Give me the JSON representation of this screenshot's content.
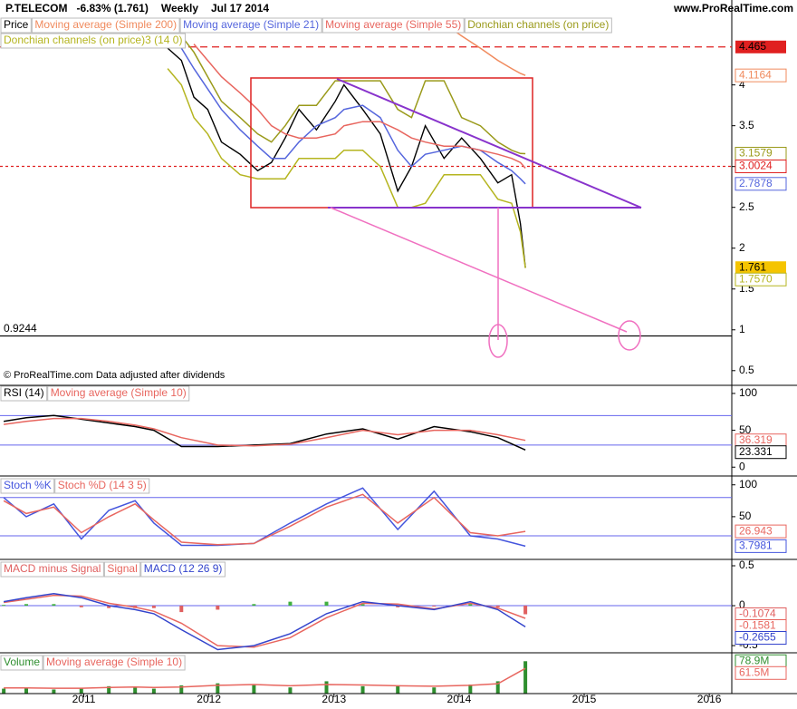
{
  "chart_data": [
    {
      "type": "line",
      "title": "P.TELECOM",
      "change": "-6.83% (1.761)",
      "period": "Weekly",
      "date": "Jul 17 2014",
      "source": "www.ProRealTime.com",
      "note": "© ProRealTime.com Data adjusted after dividends",
      "x": [
        2011.67,
        2011.78,
        2011.88,
        2011.99,
        2012.1,
        2012.25,
        2012.39,
        2012.5,
        2012.61,
        2012.72,
        2012.86,
        2013.01,
        2013.08,
        2013.23,
        2013.37,
        2013.51,
        2013.62,
        2013.73,
        2013.88,
        2014.02,
        2014.17,
        2014.31,
        2014.42,
        2014.49,
        2014.53
      ],
      "xlim": [
        2010.33,
        2016.18
      ],
      "ylim": [
        0.32,
        5.04
      ],
      "yticks": [
        4,
        3.5,
        3,
        2.5,
        2,
        1.5,
        1,
        0.5
      ],
      "series": [
        {
          "name": "Price",
          "color": "#000000",
          "label_color": "#f5c400",
          "values": [
            4.45,
            4.3,
            3.85,
            3.7,
            3.3,
            3.15,
            2.95,
            3.05,
            3.35,
            3.7,
            3.45,
            3.8,
            4.0,
            3.7,
            3.4,
            2.7,
            3.0,
            3.5,
            3.1,
            3.35,
            3.1,
            2.8,
            2.9,
            2.3,
            1.761
          ]
        },
        {
          "name": "Moving average (Simple 200)",
          "color": "#f08a5d",
          "values": [
            null,
            null,
            null,
            null,
            null,
            null,
            null,
            null,
            null,
            null,
            null,
            null,
            null,
            null,
            null,
            null,
            null,
            null,
            4.75,
            4.6,
            4.45,
            4.3,
            4.2,
            4.14,
            4.1164
          ]
        },
        {
          "name": "Moving average (Simple 21)",
          "color": "#5566dd",
          "values": [
            4.6,
            4.45,
            4.2,
            3.95,
            3.7,
            3.45,
            3.25,
            3.1,
            3.1,
            3.3,
            3.5,
            3.6,
            3.7,
            3.75,
            3.6,
            3.2,
            3.0,
            3.15,
            3.2,
            3.25,
            3.2,
            3.05,
            2.95,
            2.85,
            2.7878
          ]
        },
        {
          "name": "Moving average (Simple 55)",
          "color": "#e8665f",
          "show_last": false,
          "values": [
            null,
            null,
            4.5,
            4.3,
            4.1,
            3.9,
            3.7,
            3.5,
            3.4,
            3.35,
            3.35,
            3.4,
            3.5,
            3.55,
            3.55,
            3.45,
            3.35,
            3.3,
            3.25,
            3.25,
            3.2,
            3.15,
            3.1,
            3.05,
            2.98
          ]
        },
        {
          "name": "Donchian channels (on price)",
          "color": "#9a9a1a",
          "values": [
            4.8,
            4.6,
            4.4,
            4.1,
            3.8,
            3.6,
            3.4,
            3.3,
            3.5,
            3.75,
            3.75,
            4.05,
            4.05,
            4.05,
            4.05,
            3.7,
            3.6,
            4.05,
            4.05,
            3.6,
            3.5,
            3.3,
            3.2,
            3.16,
            3.1579
          ]
        },
        {
          "name": "Donchian channels (on price)3 (14 0)",
          "color": "#b5b520",
          "values": [
            4.2,
            4.0,
            3.6,
            3.4,
            3.1,
            2.9,
            2.85,
            2.85,
            2.85,
            3.1,
            3.1,
            3.1,
            3.2,
            3.2,
            3.0,
            2.5,
            2.5,
            2.55,
            2.9,
            2.9,
            2.9,
            2.6,
            2.55,
            2.2,
            1.757
          ],
          "value_labels": [
            null,
            null,
            null,
            null,
            null,
            null,
            null,
            null,
            null,
            null,
            null,
            null,
            null,
            null,
            null,
            null,
            null,
            null,
            null,
            null,
            null,
            null,
            null,
            null,
            "1.7570"
          ]
        }
      ],
      "hlines": [
        {
          "value": 4.465,
          "color": "#e02020",
          "dash": "8 5",
          "label_color": "#e02020"
        },
        {
          "value": 3.0024,
          "color": "#e02020",
          "dash": "3 3"
        },
        {
          "value": 0.9244,
          "color": "#000000",
          "label_side": "left"
        }
      ]
    },
    {
      "type": "line",
      "x": [
        2010.36,
        2010.54,
        2010.76,
        2010.98,
        2011.2,
        2011.41,
        2011.56,
        2011.78,
        2012.07,
        2012.36,
        2012.65,
        2012.94,
        2013.23,
        2013.51,
        2013.8,
        2014.09,
        2014.31,
        2014.53
      ],
      "xlim": [
        2010.33,
        2016.18
      ],
      "ylim": [
        -12,
        111
      ],
      "yticks": [
        100,
        50,
        0
      ],
      "levels": [
        70,
        30
      ],
      "level_color": "#6666ee",
      "series": [
        {
          "name": "RSI (14)",
          "color": "#000000",
          "values": [
            62,
            67,
            70,
            65,
            60,
            55,
            50,
            28,
            28,
            30,
            32,
            45,
            52,
            38,
            55,
            48,
            40,
            23.331
          ]
        },
        {
          "name": "Moving average (Simple 10)",
          "color": "#e8665f",
          "values": [
            58,
            62,
            66,
            66,
            62,
            57,
            52,
            40,
            30,
            29,
            31,
            40,
            50,
            44,
            50,
            50,
            44,
            36.319
          ]
        }
      ]
    },
    {
      "type": "line",
      "x": [
        2010.36,
        2010.54,
        2010.76,
        2010.98,
        2011.2,
        2011.41,
        2011.56,
        2011.78,
        2012.07,
        2012.36,
        2012.65,
        2012.94,
        2013.23,
        2013.51,
        2013.8,
        2014.09,
        2014.31,
        2014.53
      ],
      "xlim": [
        2010.33,
        2016.18
      ],
      "ylim": [
        -17,
        111
      ],
      "yticks": [
        100,
        50
      ],
      "levels": [
        80,
        20
      ],
      "level_color": "#6666ee",
      "series": [
        {
          "name": "Stoch %K",
          "color": "#4455dd",
          "values": [
            80,
            50,
            70,
            15,
            60,
            75,
            40,
            5,
            5,
            8,
            40,
            70,
            95,
            30,
            90,
            20,
            15,
            3.7981
          ]
        },
        {
          "name": "Stoch %D (14 3 5)",
          "color": "#e8665f",
          "values": [
            75,
            55,
            65,
            25,
            50,
            70,
            45,
            10,
            6,
            8,
            35,
            65,
            85,
            40,
            80,
            25,
            20,
            26.943
          ]
        }
      ]
    },
    {
      "type": "line",
      "x": [
        2010.36,
        2010.54,
        2010.76,
        2010.98,
        2011.2,
        2011.41,
        2011.56,
        2011.78,
        2012.07,
        2012.36,
        2012.65,
        2012.94,
        2013.23,
        2013.51,
        2013.8,
        2014.09,
        2014.31,
        2014.53
      ],
      "xlim": [
        2010.33,
        2016.18
      ],
      "ylim": [
        -0.59,
        0.557
      ],
      "yticks": [
        0.5,
        0,
        -0.5
      ],
      "levels": [
        0
      ],
      "level_color": "#6666ee",
      "series": [
        {
          "name": "MACD minus Signal",
          "type": "bar",
          "color": "#e06060",
          "color_up": "#40b040",
          "values": [
            0.01,
            0.02,
            0.02,
            -0.02,
            -0.03,
            -0.03,
            -0.03,
            -0.08,
            -0.05,
            0.02,
            0.05,
            0.05,
            0.02,
            -0.02,
            -0.01,
            0.02,
            -0.02,
            -0.1074
          ]
        },
        {
          "name": "Signal",
          "color": "#e8665f",
          "values": [
            0.04,
            0.08,
            0.13,
            0.12,
            0.03,
            -0.02,
            -0.07,
            -0.22,
            -0.5,
            -0.52,
            -0.4,
            -0.15,
            0.03,
            0.02,
            -0.04,
            0.03,
            -0.03,
            -0.1581
          ]
        },
        {
          "name": "MACD (12 26 9)",
          "color": "#3344cc",
          "values": [
            0.05,
            0.1,
            0.15,
            0.1,
            0.0,
            -0.05,
            -0.1,
            -0.3,
            -0.55,
            -0.5,
            -0.35,
            -0.1,
            0.05,
            0.0,
            -0.05,
            0.05,
            -0.05,
            -0.2655
          ]
        }
      ]
    },
    {
      "type": "bar",
      "x": [
        2010.36,
        2010.54,
        2010.76,
        2010.98,
        2011.2,
        2011.41,
        2011.56,
        2011.78,
        2012.07,
        2012.36,
        2012.65,
        2012.94,
        2013.23,
        2013.51,
        2013.8,
        2014.09,
        2014.31,
        2014.53
      ],
      "xlim": [
        2010.33,
        2016.18
      ],
      "ylim": [
        0,
        95
      ],
      "xticks": [
        2011,
        2012,
        2013,
        2014,
        2015,
        2016
      ],
      "series": [
        {
          "name": "Volume",
          "type": "bar",
          "color": "#2f8f2f",
          "values": [
            12,
            15,
            10,
            14,
            18,
            16,
            12,
            20,
            25,
            22,
            15,
            30,
            18,
            20,
            15,
            22,
            30,
            78.9
          ],
          "value_labels": [
            null,
            null,
            null,
            null,
            null,
            null,
            null,
            null,
            null,
            null,
            null,
            null,
            null,
            null,
            null,
            null,
            null,
            "78.9M"
          ]
        },
        {
          "name": "Moving average (Simple 10)",
          "color": "#e8665f",
          "values": [
            14,
            14,
            13,
            13,
            15,
            16,
            15,
            16,
            20,
            22,
            19,
            22,
            21,
            19,
            18,
            20,
            24,
            61.5
          ],
          "value_labels": [
            null,
            null,
            null,
            null,
            null,
            null,
            null,
            null,
            null,
            null,
            null,
            null,
            null,
            null,
            null,
            null,
            null,
            "61.5M"
          ]
        }
      ]
    }
  ]
}
